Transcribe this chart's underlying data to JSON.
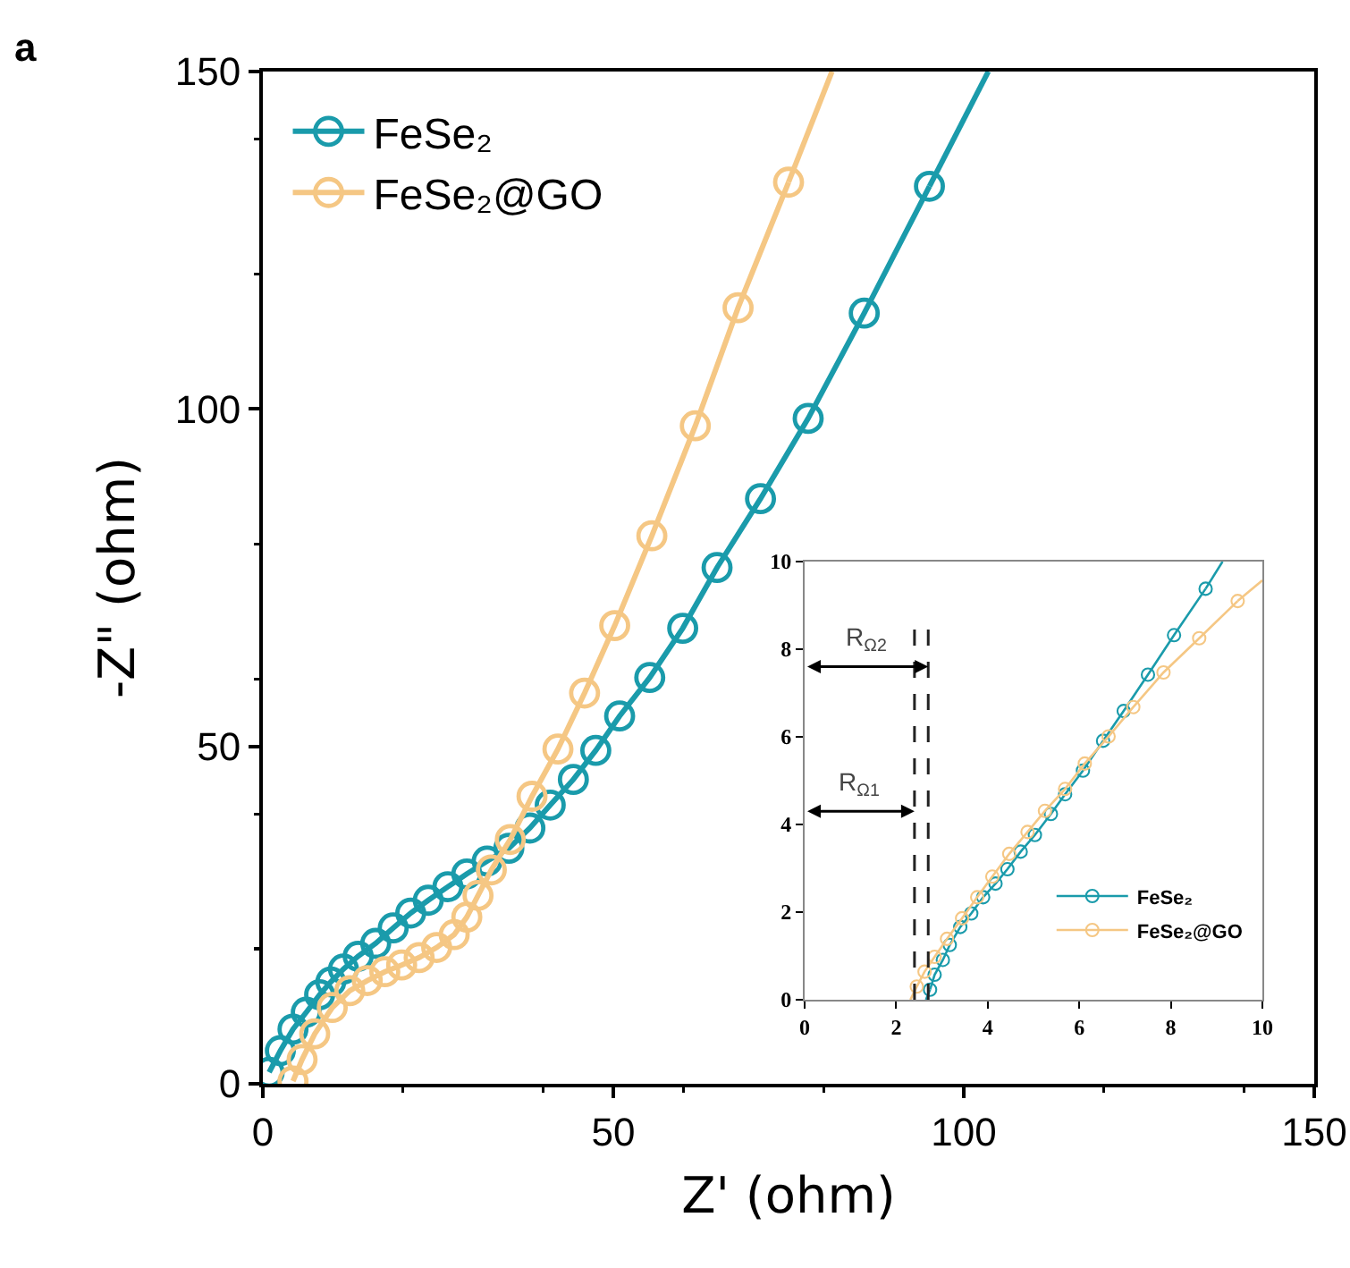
{
  "chart_data": [
    {
      "type": "line",
      "xlabel": "Z' (ohm)",
      "ylabel": "-Z\" (ohm)",
      "annotations": [
        "a"
      ],
      "xlim": [
        0,
        150
      ],
      "ylim": [
        0,
        150
      ],
      "xticks": [
        0,
        50,
        100,
        150
      ],
      "yticks": [
        0,
        50,
        100,
        150
      ],
      "grid": false,
      "legend": "top left",
      "marker": "circle",
      "line_style": "solid",
      "series": [
        {
          "name": "FeSe₂",
          "color": "#1a9bab",
          "x": [
            0.9,
            2.5,
            4.3,
            6.2,
            8.1,
            9.7,
            11.5,
            13.6,
            16.1,
            18.6,
            21.1,
            23.6,
            26.4,
            29.1,
            32.0,
            35.1,
            38.1,
            41.0,
            44.3,
            47.5,
            50.9,
            55.2,
            59.9,
            64.8,
            71.0,
            77.8,
            85.8,
            95.1
          ],
          "values": [
            1.7,
            4.9,
            8.1,
            10.6,
            13.2,
            15.1,
            17.0,
            18.9,
            20.8,
            23.1,
            25.3,
            27.2,
            29.2,
            31.1,
            33.0,
            34.9,
            37.9,
            41.3,
            45.1,
            49.4,
            54.5,
            60.2,
            67.5,
            76.5,
            86.7,
            98.6,
            114.2,
            133.0
          ]
        },
        {
          "name": "FeSe₂@GO",
          "color": "#f5c784",
          "x": [
            4.3,
            5.6,
            7.4,
            9.9,
            12.4,
            14.9,
            17.4,
            19.8,
            22.3,
            24.8,
            27.3,
            29.1,
            30.7,
            32.6,
            35.3,
            38.4,
            42.1,
            45.9,
            50.2,
            55.5,
            61.7,
            67.8,
            75.0
          ],
          "values": [
            0.4,
            3.6,
            7.4,
            11.3,
            13.8,
            15.3,
            16.6,
            17.6,
            18.7,
            20.2,
            22.1,
            24.7,
            27.9,
            31.7,
            36.2,
            42.6,
            49.6,
            57.9,
            67.9,
            81.2,
            97.5,
            115.0,
            133.6
          ]
        },
        {
          "color": "#1a9bab",
          "marker": "none",
          "x": [
            95.1,
            103.5
          ],
          "values": [
            133.0,
            150
          ]
        },
        {
          "color": "#f5c784",
          "marker": "none",
          "x": [
            75.0,
            81.2
          ],
          "values": [
            133.6,
            150
          ]
        }
      ]
    },
    {
      "type": "line",
      "annotations": [
        {
          "text": "R$_{Ω1}$",
          "x": 2.4,
          "y": 4.3
        },
        {
          "text": "R$_{Ω2}$",
          "x": 2.7,
          "y": 7.6
        }
      ],
      "xlim": [
        0,
        10
      ],
      "ylim": [
        0,
        10
      ],
      "xticks": [
        0,
        2,
        4,
        6,
        8,
        10
      ],
      "yticks": [
        0,
        2,
        4,
        6,
        8,
        10
      ],
      "grid": false,
      "legend": "bottom right",
      "marker": "circle",
      "line_style": "solid",
      "ref_lines": [
        {
          "axis": "x",
          "value": 2.4,
          "line_style": "dashed",
          "color": "#222222"
        },
        {
          "axis": "x",
          "value": 2.7,
          "line_style": "dashed",
          "color": "#222222"
        }
      ],
      "series": [
        {
          "name": "FeSe₂",
          "color": "#1a9bab",
          "x": [
            2.74,
            2.84,
            3.02,
            3.17,
            3.4,
            3.64,
            3.9,
            4.17,
            4.43,
            4.72,
            5.03,
            5.38,
            5.69,
            6.08,
            6.52,
            6.97,
            7.5,
            8.07,
            8.76
          ],
          "values": [
            0.23,
            0.57,
            0.91,
            1.25,
            1.66,
            1.97,
            2.34,
            2.65,
            2.98,
            3.38,
            3.76,
            4.24,
            4.69,
            5.23,
            5.91,
            6.59,
            7.42,
            8.32,
            9.38
          ]
        },
        {
          "name": "FeSe₂@GO",
          "color": "#f5c784",
          "x": [
            2.45,
            2.62,
            2.84,
            3.11,
            3.44,
            3.77,
            4.1,
            4.47,
            4.87,
            5.25,
            5.69,
            6.12,
            6.64,
            7.18,
            7.84,
            8.62,
            9.46
          ],
          "values": [
            0.3,
            0.64,
            0.98,
            1.39,
            1.86,
            2.34,
            2.81,
            3.33,
            3.83,
            4.31,
            4.81,
            5.39,
            6.01,
            6.68,
            7.47,
            8.25,
            9.1
          ]
        },
        {
          "color": "#1a9bab",
          "marker": "none",
          "x": [
            2.65,
            2.74
          ],
          "values": [
            0,
            0.23
          ]
        },
        {
          "color": "#1a9bab",
          "marker": "none",
          "x": [
            8.76,
            9.13
          ],
          "values": [
            9.38,
            10
          ]
        },
        {
          "color": "#f5c784",
          "marker": "none",
          "x": [
            2.31,
            2.45
          ],
          "values": [
            0,
            0.3
          ]
        },
        {
          "color": "#f5c784",
          "marker": "none",
          "x": [
            9.46,
            10
          ],
          "values": [
            9.1,
            9.57
          ]
        }
      ]
    }
  ]
}
